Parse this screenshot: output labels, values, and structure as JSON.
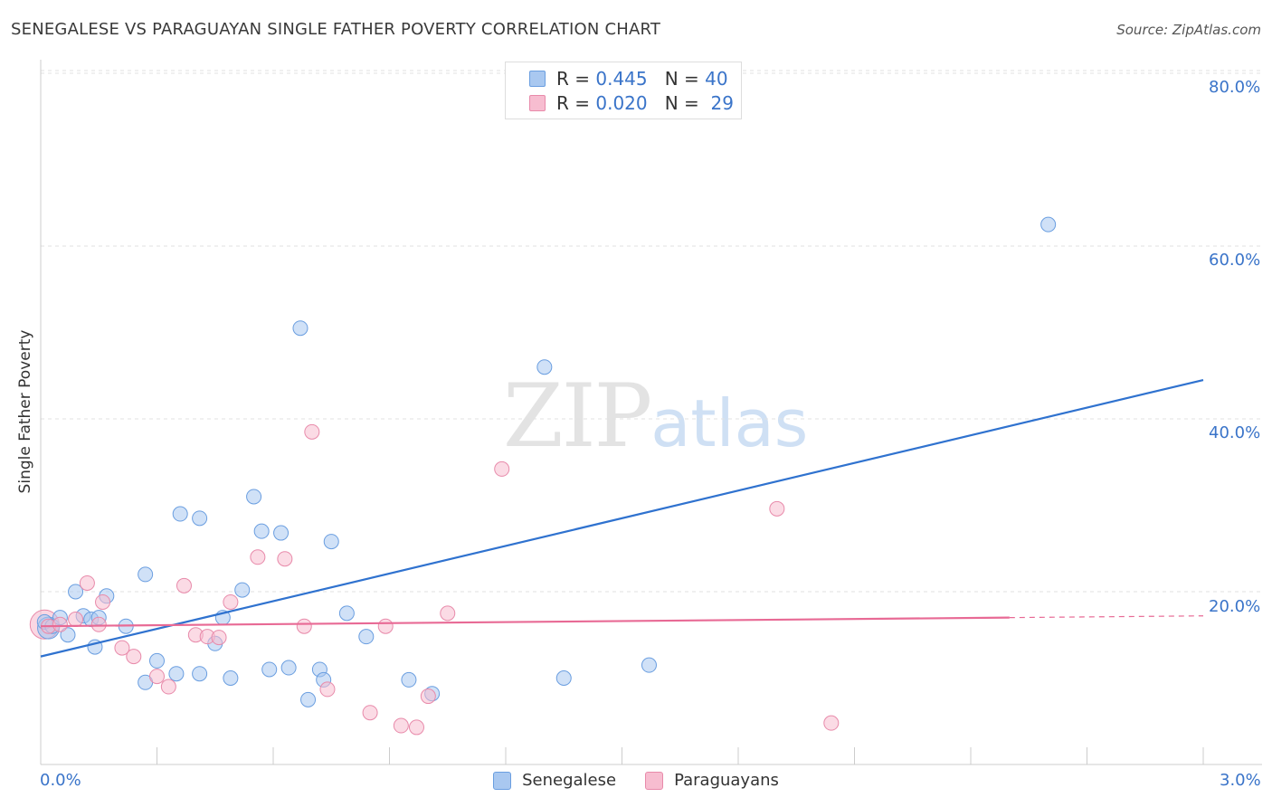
{
  "title": "SENEGALESE VS PARAGUAYAN SINGLE FATHER POVERTY CORRELATION CHART",
  "source": "Source: ZipAtlas.com",
  "watermark": {
    "zip": "ZIP",
    "atlas": "atlas"
  },
  "legend": {
    "rows": [
      {
        "r_label": "R =",
        "r_value": "0.445",
        "n_label": "N =",
        "n_value": "40",
        "color": "#a9c8f0"
      },
      {
        "r_label": "R =",
        "r_value": "0.020",
        "n_label": "N =",
        "n_value": "29",
        "color": "#f7bdd0"
      }
    ]
  },
  "bottom_legend": {
    "senegalese": "Senegalese",
    "paraguayans": "Paraguayans"
  },
  "colors": {
    "blue_fill": "#a9c8f0",
    "blue_stroke": "#6a9ee0",
    "blue_line": "#2f72cf",
    "pink_fill": "#f7bdd0",
    "pink_stroke": "#e88aaa",
    "pink_line": "#e86a95",
    "tick_label": "#3a74c9"
  },
  "chart_data": {
    "type": "scatter",
    "title": "SENEGALESE VS PARAGUAYAN SINGLE FATHER POVERTY CORRELATION CHART",
    "xlabel": "",
    "ylabel": "Single Father Poverty",
    "xlim": [
      0,
      3.0
    ],
    "ylim": [
      0,
      80
    ],
    "x_tick_labels": [
      "0.0%",
      "3.0%"
    ],
    "y_tick_labels": [
      "20.0%",
      "40.0%",
      "60.0%",
      "80.0%"
    ],
    "y_ticks": [
      20,
      40,
      60,
      80
    ],
    "grid": "horizontal dashed",
    "legend_position": "top-center",
    "series": [
      {
        "name": "Senegalese",
        "points": [
          [
            0.01,
            16.5
          ],
          [
            0.03,
            16.0
          ],
          [
            0.05,
            17.0
          ],
          [
            0.07,
            15.0
          ],
          [
            0.09,
            20.0
          ],
          [
            0.11,
            17.2
          ],
          [
            0.13,
            16.8
          ],
          [
            0.14,
            13.6
          ],
          [
            0.17,
            19.5
          ],
          [
            0.22,
            16.0
          ],
          [
            0.27,
            22.0
          ],
          [
            0.3,
            12.0
          ],
          [
            0.27,
            9.5
          ],
          [
            0.35,
            10.5
          ],
          [
            0.41,
            10.5
          ],
          [
            0.36,
            29.0
          ],
          [
            0.41,
            28.5
          ],
          [
            0.45,
            14.0
          ],
          [
            0.47,
            17.0
          ],
          [
            0.49,
            10.0
          ],
          [
            0.52,
            20.2
          ],
          [
            0.55,
            31.0
          ],
          [
            0.57,
            27.0
          ],
          [
            0.59,
            11.0
          ],
          [
            0.62,
            26.8
          ],
          [
            0.64,
            11.2
          ],
          [
            0.67,
            50.5
          ],
          [
            0.69,
            7.5
          ],
          [
            0.72,
            11.0
          ],
          [
            0.73,
            9.8
          ],
          [
            0.75,
            25.8
          ],
          [
            0.79,
            17.5
          ],
          [
            0.84,
            14.8
          ],
          [
            0.95,
            9.8
          ],
          [
            1.01,
            8.2
          ],
          [
            1.3,
            46.0
          ],
          [
            1.35,
            10.0
          ],
          [
            1.57,
            11.5
          ],
          [
            2.6,
            62.5
          ],
          [
            0.15,
            17.0
          ]
        ]
      },
      {
        "name": "Paraguayans",
        "points": [
          [
            0.02,
            16.0
          ],
          [
            0.05,
            16.2
          ],
          [
            0.09,
            16.8
          ],
          [
            0.12,
            21.0
          ],
          [
            0.16,
            18.8
          ],
          [
            0.15,
            16.2
          ],
          [
            0.21,
            13.5
          ],
          [
            0.24,
            12.5
          ],
          [
            0.3,
            10.2
          ],
          [
            0.33,
            9.0
          ],
          [
            0.37,
            20.7
          ],
          [
            0.4,
            15.0
          ],
          [
            0.43,
            14.8
          ],
          [
            0.46,
            14.7
          ],
          [
            0.49,
            18.8
          ],
          [
            0.56,
            24.0
          ],
          [
            0.63,
            23.8
          ],
          [
            0.68,
            16.0
          ],
          [
            0.7,
            38.5
          ],
          [
            0.74,
            8.7
          ],
          [
            0.85,
            6.0
          ],
          [
            0.89,
            16.0
          ],
          [
            0.93,
            4.5
          ],
          [
            0.97,
            4.3
          ],
          [
            1.0,
            7.9
          ],
          [
            1.05,
            17.5
          ],
          [
            1.19,
            34.2
          ],
          [
            1.9,
            29.6
          ],
          [
            2.04,
            4.8
          ]
        ]
      }
    ],
    "trendlines": [
      {
        "name": "Senegalese",
        "x": [
          0.0,
          3.0
        ],
        "y": [
          12.5,
          44.5
        ]
      },
      {
        "name": "Paraguayans",
        "x": [
          0.0,
          2.5
        ],
        "y": [
          16.0,
          17.0
        ],
        "dashed_to": [
          3.0,
          17.2
        ]
      }
    ]
  }
}
